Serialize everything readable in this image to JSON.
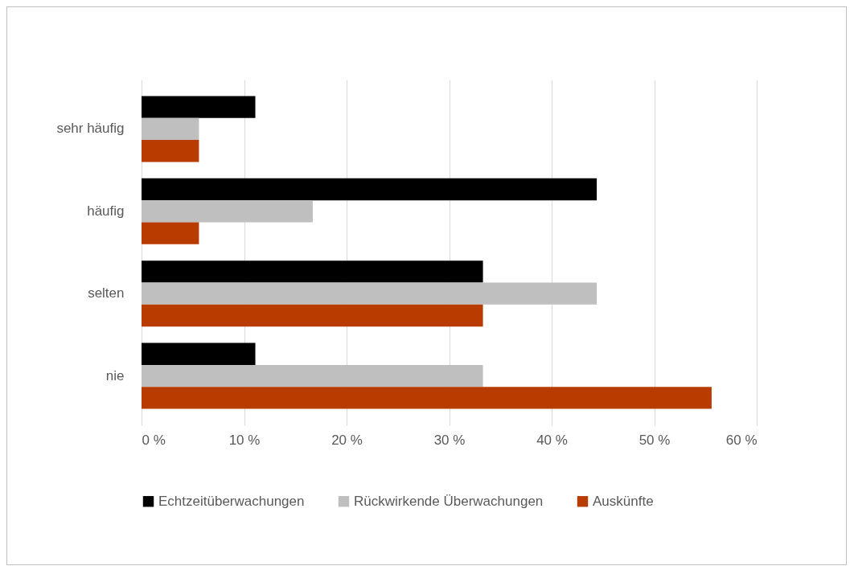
{
  "chart_data": {
    "type": "bar",
    "orientation": "horizontal",
    "categories": [
      "sehr häufig",
      "häufig",
      "selten",
      "nie"
    ],
    "series": [
      {
        "name": "Echtzeitüberwachungen",
        "color": "#000000",
        "values": [
          11.1,
          44.4,
          33.3,
          11.1
        ]
      },
      {
        "name": "Rückwirkende Überwachungen",
        "color": "#bfbfbf",
        "values": [
          5.6,
          16.7,
          44.4,
          33.3
        ]
      },
      {
        "name": "Auskünfte",
        "color": "#b83c00",
        "values": [
          5.6,
          5.6,
          33.3,
          55.6
        ]
      }
    ],
    "xlim": [
      0,
      60
    ],
    "xticks": [
      {
        "value": 0,
        "label": "0 %"
      },
      {
        "value": 10,
        "label": "10 %"
      },
      {
        "value": 20,
        "label": "20 %"
      },
      {
        "value": 30,
        "label": "30 %"
      },
      {
        "value": 40,
        "label": "40 %"
      },
      {
        "value": 50,
        "label": "50 %"
      },
      {
        "value": 60,
        "label": "60 %"
      }
    ],
    "grid": "x",
    "legend": "bottom"
  }
}
